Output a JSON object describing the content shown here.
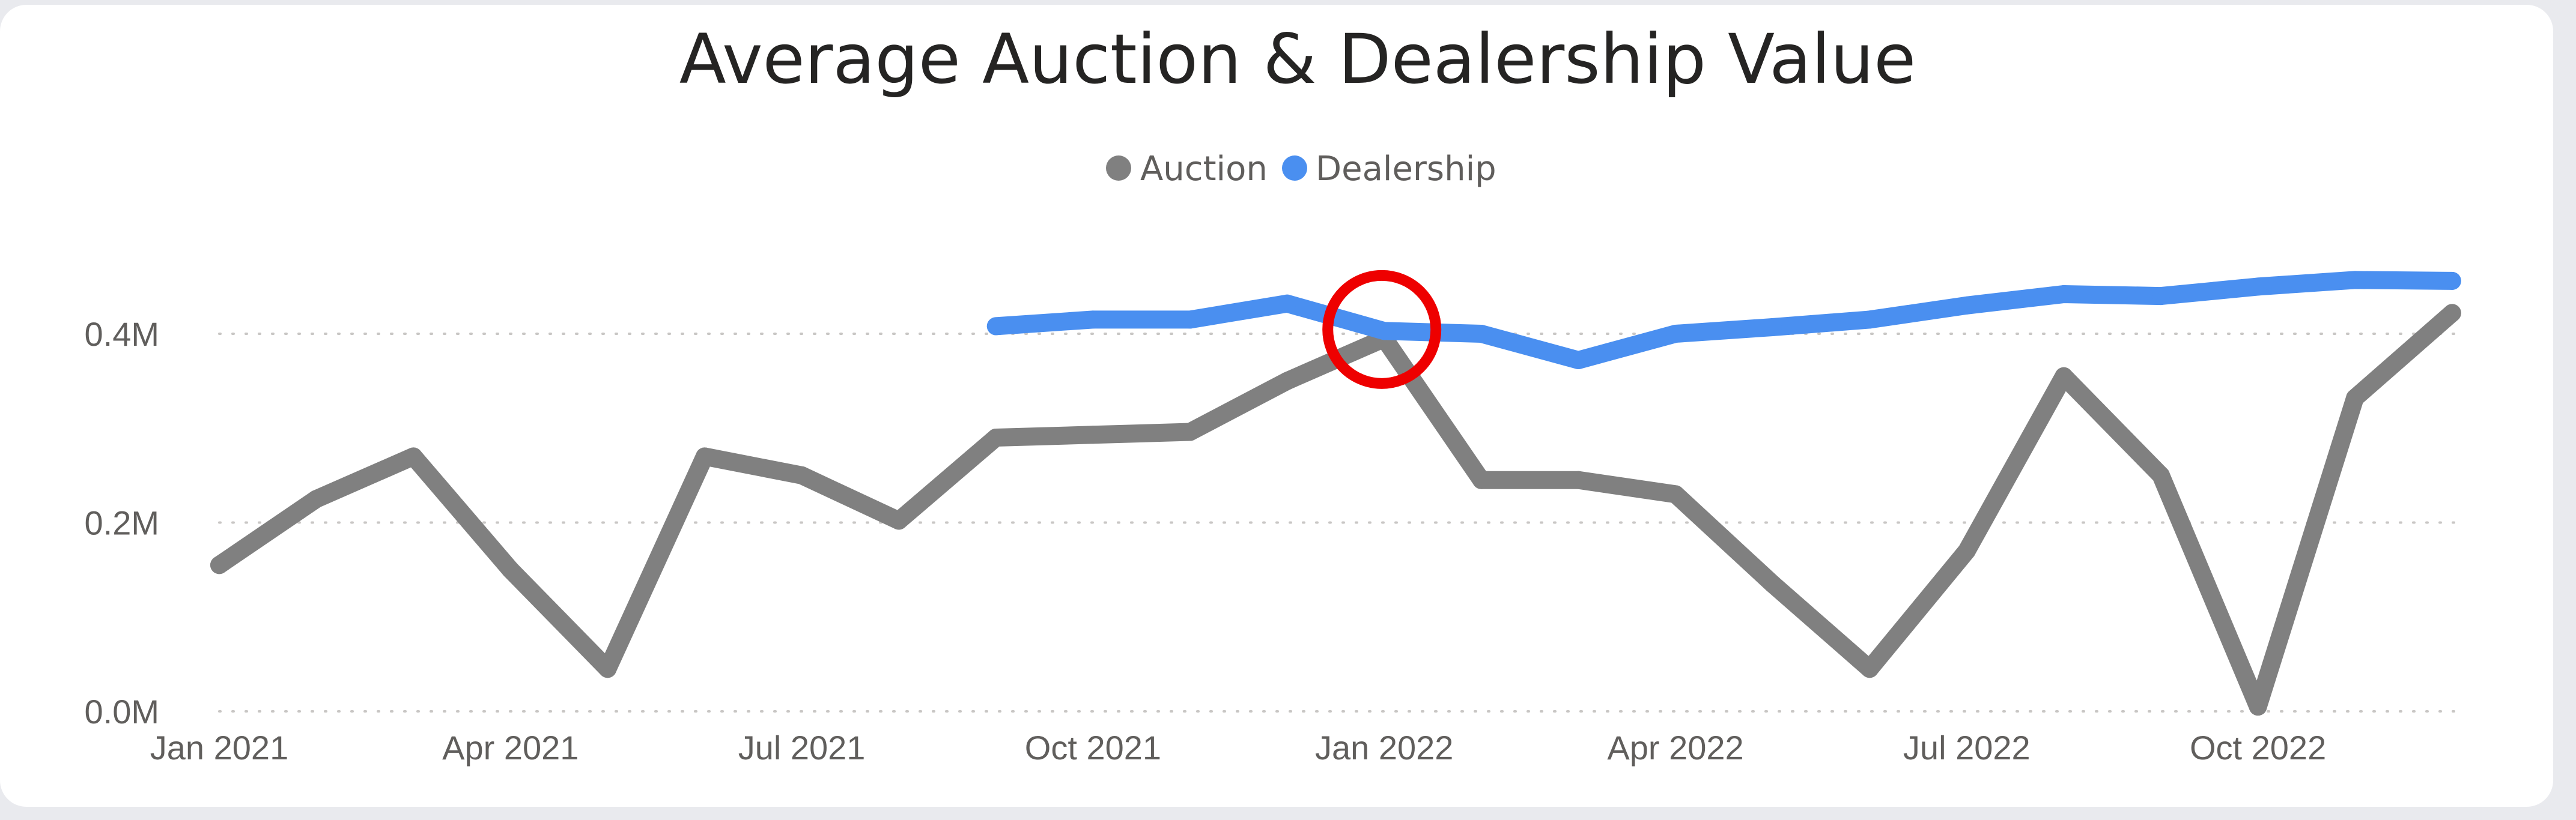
{
  "chart_data": {
    "type": "line",
    "title": "Average Auction & Dealership Value",
    "xlabel": "",
    "ylabel": "",
    "categories": [
      "Jan 2021",
      "Feb 2021",
      "Mar 2021",
      "Apr 2021",
      "May 2021",
      "Jun 2021",
      "Jul 2021",
      "Aug 2021",
      "Sep 2021",
      "Oct 2021",
      "Nov 2021",
      "Dec 2021",
      "Jan 2022",
      "Feb 2022",
      "Mar 2022",
      "Apr 2022",
      "May 2022",
      "Jun 2022",
      "Jul 2022",
      "Aug 2022",
      "Sep 2022",
      "Oct 2022",
      "Nov 2022",
      "Dec 2022"
    ],
    "x_tick_labels": [
      "Jan 2021",
      "Apr 2021",
      "Jul 2021",
      "Oct 2021",
      "Jan 2022",
      "Apr 2022",
      "Jul 2022",
      "Oct 2022"
    ],
    "x_tick_indices": [
      0,
      3,
      6,
      9,
      12,
      15,
      18,
      21
    ],
    "y_tick_labels": [
      "0.0M",
      "0.2M",
      "0.4M"
    ],
    "y_tick_values": [
      0,
      200000,
      400000
    ],
    "ylim": [
      0,
      480000
    ],
    "grid": true,
    "legend_position": "top-center",
    "series": [
      {
        "name": "Auction",
        "color": "#808080",
        "values": [
          155000,
          225000,
          270000,
          150000,
          45000,
          270000,
          250000,
          202000,
          290000,
          293000,
          296000,
          350000,
          395000,
          245000,
          245000,
          230000,
          135000,
          45000,
          170000,
          355000,
          250000,
          5000,
          332000,
          422000
        ]
      },
      {
        "name": "Dealership",
        "color": "#4a8ff0",
        "values": [
          null,
          null,
          null,
          null,
          null,
          null,
          null,
          null,
          408000,
          415000,
          415000,
          432000,
          403000,
          400000,
          372000,
          400000,
          407000,
          415000,
          430000,
          442000,
          440000,
          450000,
          457000,
          456000
        ]
      }
    ],
    "annotations": [
      {
        "type": "circle",
        "color": "#ee0000",
        "category": "Jan 2022",
        "value": 395000
      }
    ]
  }
}
